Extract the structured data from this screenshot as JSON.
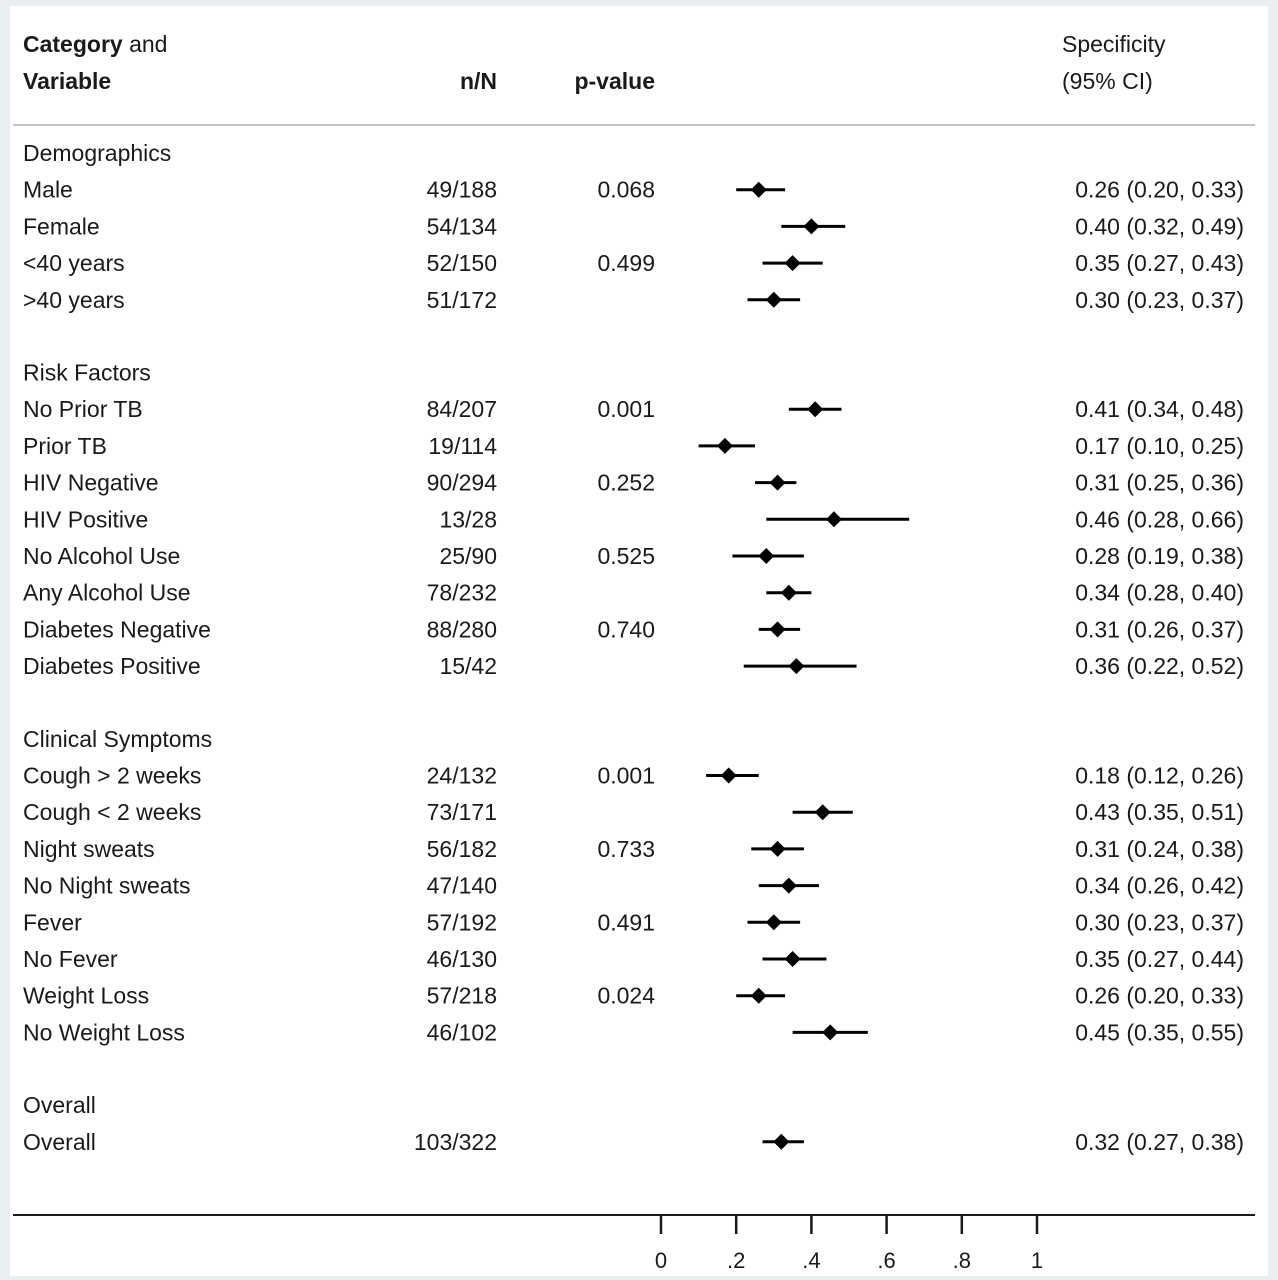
{
  "chart_data": {
    "type": "forest",
    "header": {
      "col1_line1_bold": "Category",
      "col1_line1_rest": " and",
      "col1_line2": "Variable",
      "col2": "n/N",
      "col3": "p-value",
      "col4_line1": "Specificity",
      "col4_line2": "(95% CI)"
    },
    "xlim": [
      0,
      1
    ],
    "ticks": [
      {
        "value": 0,
        "label": "0"
      },
      {
        "value": 0.2,
        "label": ".2"
      },
      {
        "value": 0.4,
        "label": ".4"
      },
      {
        "value": 0.6,
        "label": ".6"
      },
      {
        "value": 0.8,
        "label": ".8"
      },
      {
        "value": 1,
        "label": "1"
      }
    ],
    "rows": [
      {
        "kind": "group",
        "label": "Demographics"
      },
      {
        "kind": "item",
        "label": "Male",
        "nN": "49/188",
        "p": "0.068",
        "est": 0.26,
        "lo": 0.2,
        "hi": 0.33,
        "ci": "0.26 (0.20, 0.33)"
      },
      {
        "kind": "item",
        "label": "Female",
        "nN": "54/134",
        "p": "",
        "est": 0.4,
        "lo": 0.32,
        "hi": 0.49,
        "ci": "0.40 (0.32, 0.49)"
      },
      {
        "kind": "item",
        "label": "<40 years",
        "nN": "52/150",
        "p": "0.499",
        "est": 0.35,
        "lo": 0.27,
        "hi": 0.43,
        "ci": "0.35 (0.27, 0.43)"
      },
      {
        "kind": "item",
        "label": ">40 years",
        "nN": "51/172",
        "p": "",
        "est": 0.3,
        "lo": 0.23,
        "hi": 0.37,
        "ci": "0.30 (0.23, 0.37)"
      },
      {
        "kind": "group",
        "label": "Risk Factors"
      },
      {
        "kind": "item",
        "label": "No Prior TB",
        "nN": "84/207",
        "p": "0.001",
        "est": 0.41,
        "lo": 0.34,
        "hi": 0.48,
        "ci": "0.41 (0.34, 0.48)"
      },
      {
        "kind": "item",
        "label": "Prior TB",
        "nN": "19/114",
        "p": "",
        "est": 0.17,
        "lo": 0.1,
        "hi": 0.25,
        "ci": "0.17 (0.10, 0.25)"
      },
      {
        "kind": "item",
        "label": "HIV Negative",
        "nN": "90/294",
        "p": "0.252",
        "est": 0.31,
        "lo": 0.25,
        "hi": 0.36,
        "ci": "0.31 (0.25, 0.36)"
      },
      {
        "kind": "item",
        "label": "HIV Positive",
        "nN": "13/28",
        "p": "",
        "est": 0.46,
        "lo": 0.28,
        "hi": 0.66,
        "ci": "0.46 (0.28, 0.66)"
      },
      {
        "kind": "item",
        "label": "No Alcohol Use",
        "nN": "25/90",
        "p": "0.525",
        "est": 0.28,
        "lo": 0.19,
        "hi": 0.38,
        "ci": "0.28 (0.19, 0.38)"
      },
      {
        "kind": "item",
        "label": "Any Alcohol Use",
        "nN": "78/232",
        "p": "",
        "est": 0.34,
        "lo": 0.28,
        "hi": 0.4,
        "ci": "0.34 (0.28, 0.40)"
      },
      {
        "kind": "item",
        "label": "Diabetes Negative",
        "nN": "88/280",
        "p": "0.740",
        "est": 0.31,
        "lo": 0.26,
        "hi": 0.37,
        "ci": "0.31 (0.26, 0.37)"
      },
      {
        "kind": "item",
        "label": "Diabetes Positive",
        "nN": "15/42",
        "p": "",
        "est": 0.36,
        "lo": 0.22,
        "hi": 0.52,
        "ci": "0.36 (0.22, 0.52)"
      },
      {
        "kind": "group",
        "label": "Clinical Symptoms"
      },
      {
        "kind": "item",
        "label": "Cough > 2 weeks",
        "nN": "24/132",
        "p": "0.001",
        "est": 0.18,
        "lo": 0.12,
        "hi": 0.26,
        "ci": "0.18 (0.12, 0.26)"
      },
      {
        "kind": "item",
        "label": "Cough < 2 weeks",
        "nN": "73/171",
        "p": "",
        "est": 0.43,
        "lo": 0.35,
        "hi": 0.51,
        "ci": "0.43 (0.35, 0.51)"
      },
      {
        "kind": "item",
        "label": "Night sweats",
        "nN": "56/182",
        "p": "0.733",
        "est": 0.31,
        "lo": 0.24,
        "hi": 0.38,
        "ci": "0.31 (0.24, 0.38)"
      },
      {
        "kind": "item",
        "label": "No Night sweats",
        "nN": "47/140",
        "p": "",
        "est": 0.34,
        "lo": 0.26,
        "hi": 0.42,
        "ci": "0.34 (0.26, 0.42)"
      },
      {
        "kind": "item",
        "label": "Fever",
        "nN": "57/192",
        "p": "0.491",
        "est": 0.3,
        "lo": 0.23,
        "hi": 0.37,
        "ci": "0.30 (0.23, 0.37)"
      },
      {
        "kind": "item",
        "label": "No Fever",
        "nN": "46/130",
        "p": "",
        "est": 0.35,
        "lo": 0.27,
        "hi": 0.44,
        "ci": "0.35 (0.27, 0.44)"
      },
      {
        "kind": "item",
        "label": "Weight Loss",
        "nN": "57/218",
        "p": "0.024",
        "est": 0.26,
        "lo": 0.2,
        "hi": 0.33,
        "ci": "0.26 (0.20, 0.33)"
      },
      {
        "kind": "item",
        "label": "No Weight Loss",
        "nN": "46/102",
        "p": "",
        "est": 0.45,
        "lo": 0.35,
        "hi": 0.55,
        "ci": "0.45 (0.35, 0.55)"
      },
      {
        "kind": "group",
        "label": "Overall"
      },
      {
        "kind": "item",
        "label": "Overall",
        "nN": "103/322",
        "p": "",
        "est": 0.32,
        "lo": 0.27,
        "hi": 0.38,
        "ci": "0.32 (0.27, 0.38)"
      }
    ]
  }
}
